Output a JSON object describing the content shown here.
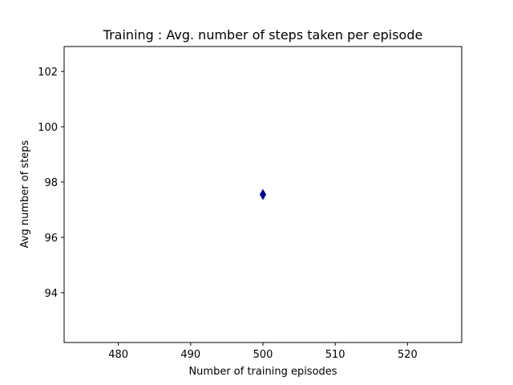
{
  "chart_data": {
    "type": "scatter",
    "title": "Training : Avg. number of steps taken per episode",
    "xlabel": "Number of training episodes",
    "ylabel": "Avg number of steps",
    "xlim": [
      472.5,
      527.5
    ],
    "ylim": [
      92.2,
      102.9
    ],
    "xticks": [
      480,
      490,
      500,
      510,
      520
    ],
    "yticks": [
      94,
      96,
      98,
      100,
      102
    ],
    "grid": false,
    "marker": "diamond",
    "series": [
      {
        "color": "#00008b",
        "points": [
          {
            "x": 500,
            "y": 97.55
          }
        ]
      }
    ]
  }
}
